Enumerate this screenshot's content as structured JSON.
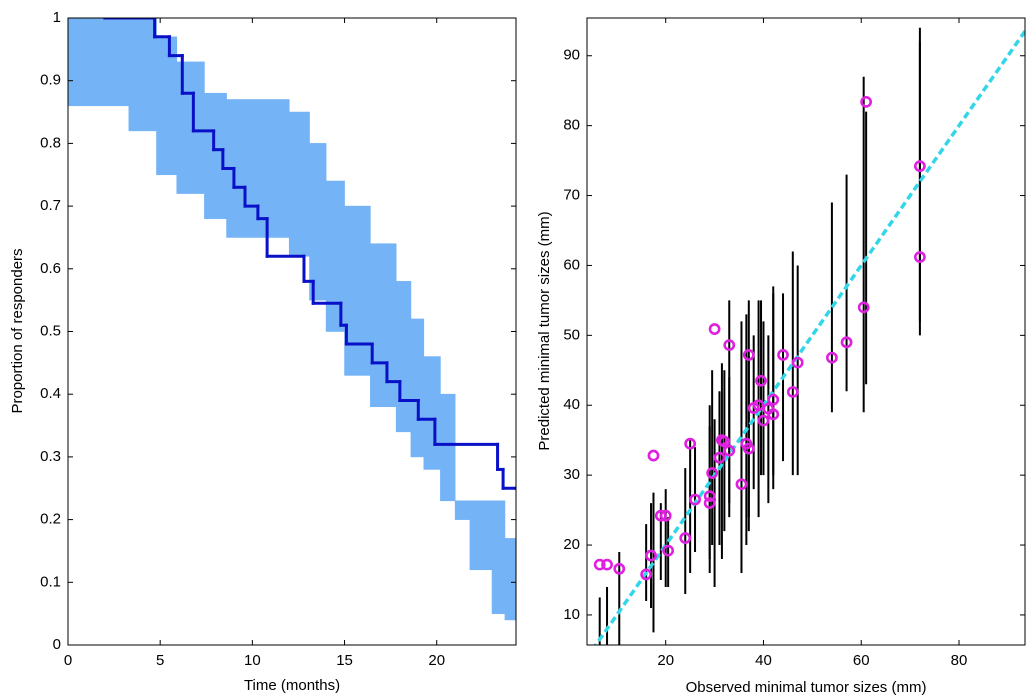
{
  "chart_data": [
    {
      "type": "step",
      "x_label": "Time (months)",
      "y_label": "Proportion of responders",
      "xlim": [
        0,
        24.3
      ],
      "ylim": [
        0,
        1
      ],
      "xticks": [
        0,
        5,
        10,
        15,
        20
      ],
      "yticks": [
        0,
        0.1,
        0.2,
        0.3,
        0.4,
        0.5,
        0.6,
        0.7,
        0.8,
        0.9,
        1
      ],
      "band": {
        "color": "#74b3f5",
        "x": [
          0,
          1.5,
          3.3,
          4.8,
          5.9,
          7.4,
          8.6,
          10.7,
          12,
          13.1,
          14,
          15,
          16.4,
          17.8,
          18.6,
          19.3,
          20.2,
          21,
          21.8,
          23,
          23.7,
          24.3
        ],
        "upper": [
          1,
          1,
          1,
          0.97,
          0.93,
          0.88,
          0.87,
          0.87,
          0.85,
          0.8,
          0.74,
          0.7,
          0.64,
          0.58,
          0.52,
          0.46,
          0.4,
          0.23,
          0.23,
          0.23,
          0.17,
          0.17
        ],
        "lower": [
          0.86,
          0.86,
          0.82,
          0.75,
          0.72,
          0.68,
          0.65,
          0.65,
          0.62,
          0.55,
          0.5,
          0.43,
          0.38,
          0.34,
          0.3,
          0.28,
          0.23,
          0.2,
          0.12,
          0.05,
          0.04,
          0.04
        ]
      },
      "line": {
        "color": "#0a10c8",
        "x": [
          2,
          4.7,
          5.5,
          6.2,
          6.8,
          7.9,
          8.4,
          9.0,
          9.6,
          10.3,
          10.8,
          12.8,
          13.3,
          14.8,
          15.1,
          16.5,
          17.3,
          18.0,
          19.0,
          19.9,
          23.3,
          23.6,
          24.3
        ],
        "y": [
          1,
          0.97,
          0.94,
          0.88,
          0.82,
          0.79,
          0.76,
          0.73,
          0.7,
          0.68,
          0.62,
          0.58,
          0.545,
          0.51,
          0.48,
          0.45,
          0.42,
          0.39,
          0.36,
          0.32,
          0.28,
          0.25,
          0.25
        ]
      }
    },
    {
      "type": "scatter",
      "x_label": "Observed minimal tumor sizes (mm)",
      "y_label": "Predicted minimal tumor sizes (mm)",
      "xlim": [
        3.9,
        93.5
      ],
      "ylim": [
        5.7,
        95.4
      ],
      "xticks": [
        20,
        40,
        60,
        80
      ],
      "yticks": [
        10,
        20,
        30,
        40,
        50,
        60,
        70,
        80,
        90
      ],
      "reference_line": {
        "color": "#33d6e8",
        "x": [
          5,
          95
        ],
        "y": [
          5,
          95
        ]
      },
      "points": {
        "color": "#e020e0",
        "bar_color": "#000000",
        "x": [
          6.5,
          8,
          10.5,
          16,
          17,
          17.5,
          19,
          20,
          20.5,
          24,
          25,
          26,
          29,
          29,
          29.5,
          30,
          31,
          31.5,
          32,
          33,
          33,
          35.5,
          36.5,
          37,
          37,
          38,
          39,
          39.5,
          40,
          41,
          42,
          42,
          44,
          46,
          47,
          54,
          57,
          60.5,
          61,
          72,
          72
        ],
        "y": [
          17.2,
          17.2,
          16.6,
          15.8,
          18.5,
          32.8,
          24.2,
          24.2,
          19.2,
          21,
          34.5,
          26.5,
          26,
          27,
          30.3,
          50.9,
          32.5,
          35,
          34.8,
          48.6,
          33.5,
          28.7,
          34.5,
          33.8,
          47.2,
          39.6,
          40,
          43.5,
          37.8,
          39.5,
          40.8,
          38.7,
          47.2,
          41.9,
          46.1,
          46.8,
          49,
          54,
          83.4,
          74.2,
          61.2
        ],
        "y_low": [
          5.7,
          5.7,
          5.7,
          12,
          11,
          7.5,
          15,
          14,
          14,
          13,
          16,
          19,
          16,
          18,
          20,
          14,
          20,
          18,
          22,
          26,
          24,
          16,
          20,
          22,
          24,
          28,
          24,
          30,
          30,
          26,
          30,
          28,
          32,
          30,
          30,
          39,
          42,
          39,
          43,
          52,
          50
        ],
        "y_high": [
          12.5,
          14,
          19,
          23,
          26,
          27.5,
          26,
          28,
          24,
          31,
          35,
          34,
          37,
          40,
          45,
          38,
          42,
          46,
          45,
          55,
          44,
          52,
          53,
          55,
          47,
          50,
          55,
          55,
          52,
          50,
          57,
          56,
          56,
          62,
          60,
          69,
          73,
          87,
          82,
          92,
          94
        ]
      }
    }
  ]
}
